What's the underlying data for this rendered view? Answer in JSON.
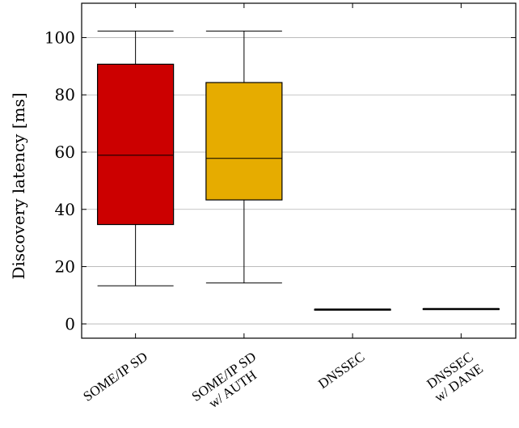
{
  "chart_data": {
    "type": "boxplot",
    "ylabel": "Discovery latency [ms]",
    "ylim": [
      -5,
      112
    ],
    "yticks": [
      0,
      20,
      40,
      60,
      80,
      100
    ],
    "grid": "horizontal",
    "categories": [
      {
        "lines": [
          "SOME/IP SD"
        ],
        "color": "#cc0000",
        "whisker_low": 13.3,
        "q1": 34.7,
        "median": 58.9,
        "q3": 90.7,
        "whisker_high": 102.3
      },
      {
        "lines": [
          "SOME/IP SD",
          "w/ AUTH"
        ],
        "color": "#e6ac00",
        "whisker_low": 14.3,
        "q1": 43.3,
        "median": 57.8,
        "q3": 84.3,
        "whisker_high": 102.3
      },
      {
        "lines": [
          "DNSSEC"
        ],
        "color": "#000000",
        "whisker_low": 4.8,
        "q1": 4.9,
        "median": 5.0,
        "q3": 5.1,
        "whisker_high": 5.2
      },
      {
        "lines": [
          "DNSSEC",
          "w/ DANE"
        ],
        "color": "#000000",
        "whisker_low": 5.0,
        "q1": 5.1,
        "median": 5.2,
        "q3": 5.3,
        "whisker_high": 5.4
      }
    ]
  }
}
